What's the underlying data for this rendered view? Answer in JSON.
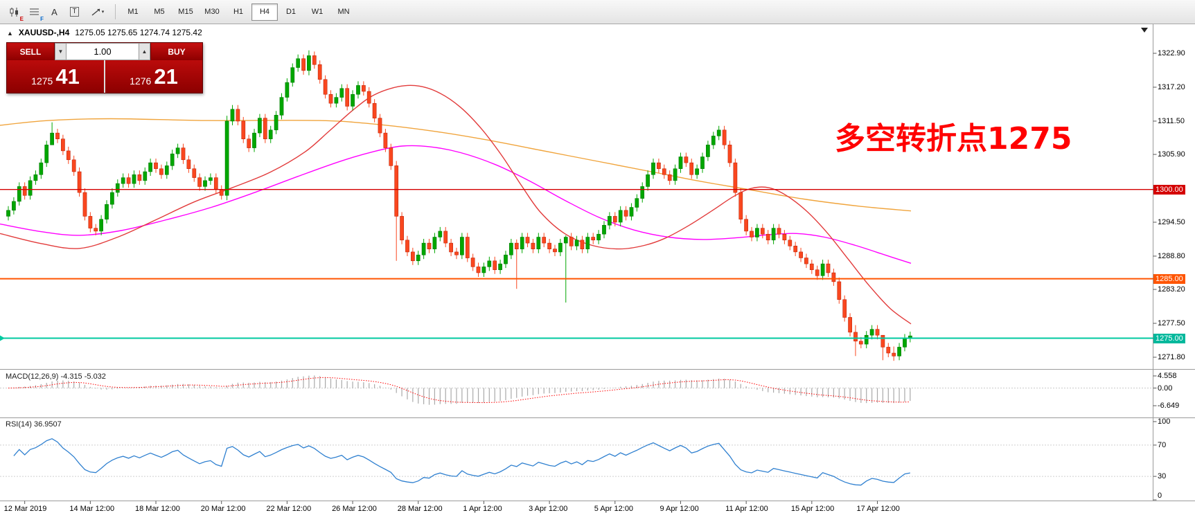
{
  "toolbar": {
    "icon_subs": [
      "E",
      "F"
    ],
    "text_tool": "A",
    "label_tool": "T",
    "caret": "▾",
    "timeframes": [
      "M1",
      "M5",
      "M15",
      "M30",
      "H1",
      "H4",
      "D1",
      "W1",
      "MN"
    ],
    "active_timeframe": "H4"
  },
  "chart_header": {
    "arrow": "▲",
    "symbol": "XAUUSD-,H4",
    "ohlc": "1275.05 1275.65 1274.74 1275.42"
  },
  "trade_panel": {
    "sell_label": "SELL",
    "buy_label": "BUY",
    "volume": "1.00",
    "spin_down": "▼",
    "spin_up": "▲",
    "sell_price": "1275",
    "sell_pips": "41",
    "buy_price": "1276",
    "buy_pips": "21"
  },
  "annotation": {
    "text": "多空转折点1275",
    "color": "#ff0000"
  },
  "price_axis": {
    "ticks": [
      "1322.90",
      "1317.20",
      "1311.50",
      "1305.90",
      "1294.50",
      "1288.80",
      "1283.20",
      "1277.50",
      "1271.80"
    ],
    "badges": [
      {
        "text": "1300.00",
        "price": 1300.0,
        "color": "#d40000"
      },
      {
        "text": "1285.00",
        "price": 1285.0,
        "color": "#ff5400"
      },
      {
        "text": "1275.00",
        "price": 1275.0,
        "color": "#00b89c"
      }
    ]
  },
  "indicators": {
    "macd": {
      "label": "MACD(12,26,9)",
      "values": "-4.315 -5.032",
      "axis": [
        "4.558",
        "0.00",
        "-6.649"
      ]
    },
    "rsi": {
      "label": "RSI(14)",
      "value": "36.9507",
      "axis": [
        "100",
        "70",
        "30",
        "0"
      ]
    }
  },
  "time_axis": {
    "labels": [
      "12 Mar 2019",
      "14 Mar 12:00",
      "18 Mar 12:00",
      "20 Mar 12:00",
      "22 Mar 12:00",
      "26 Mar 12:00",
      "28 Mar 12:00",
      "1 Apr 12:00",
      "3 Apr 12:00",
      "5 Apr 12:00",
      "9 Apr 12:00",
      "11 Apr 12:00",
      "15 Apr 12:00",
      "17 Apr 12:00"
    ]
  },
  "chart_data": {
    "type": "candlestick",
    "symbol": "XAUUSD",
    "timeframe": "H4",
    "title": "XAUUSD-,H4",
    "y_axis_range": [
      1270.0,
      1324.6
    ],
    "first_open": 1295.5,
    "default_wick": 0.7,
    "closes": [
      1296.5,
      1298.0,
      1300.5,
      1299.0,
      1301.5,
      1302.5,
      1304.5,
      1307.5,
      1309.5,
      1308.5,
      1306.5,
      1305.0,
      1303.0,
      1299.5,
      1295.5,
      1293.5,
      1293.0,
      1295.0,
      1297.5,
      1299.5,
      1301.0,
      1302.0,
      1301.0,
      1302.5,
      1301.5,
      1303.0,
      1304.5,
      1303.5,
      1302.5,
      1304.0,
      1306.0,
      1307.0,
      1305.0,
      1303.5,
      1302.0,
      1300.5,
      1301.5,
      1302.0,
      1300.0,
      1299.0,
      1311.5,
      1313.5,
      1311.5,
      1308.5,
      1307.0,
      1309.5,
      1312.0,
      1308.5,
      1310.0,
      1312.5,
      1315.5,
      1318.0,
      1320.5,
      1322.0,
      1320.0,
      1322.5,
      1321.0,
      1318.5,
      1316.0,
      1314.5,
      1315.5,
      1317.0,
      1314.0,
      1316.0,
      1317.5,
      1316.5,
      1314.5,
      1312.0,
      1309.5,
      1307.0,
      1304.0,
      1295.5,
      1291.5,
      1289.5,
      1288.0,
      1289.0,
      1291.0,
      1290.0,
      1292.0,
      1293.0,
      1291.0,
      1289.5,
      1289.0,
      1292.0,
      1288.5,
      1287.0,
      1286.0,
      1287.0,
      1288.0,
      1286.5,
      1287.5,
      1289.0,
      1291.0,
      1290.0,
      1292.0,
      1291.0,
      1290.0,
      1292.0,
      1291.0,
      1290.0,
      1289.5,
      1291.0,
      1292.0,
      1290.5,
      1291.5,
      1290.0,
      1292.0,
      1291.5,
      1292.5,
      1294.0,
      1295.5,
      1294.5,
      1296.5,
      1295.5,
      1297.0,
      1298.5,
      1300.5,
      1302.5,
      1304.5,
      1303.5,
      1302.5,
      1301.5,
      1303.5,
      1305.5,
      1304.5,
      1302.5,
      1303.5,
      1305.5,
      1307.5,
      1309.0,
      1310.0,
      1307.5,
      1304.5,
      1299.5,
      1295.0,
      1293.0,
      1292.0,
      1293.5,
      1292.5,
      1291.5,
      1293.5,
      1292.5,
      1291.5,
      1290.5,
      1289.5,
      1288.5,
      1287.5,
      1286.5,
      1285.5,
      1287.5,
      1286.0,
      1284.5,
      1281.5,
      1278.5,
      1276.0,
      1274.5,
      1274.0,
      1275.5,
      1276.5,
      1275.5,
      1273.5,
      1272.5,
      1272.0,
      1273.5,
      1275.0,
      1275.4
    ],
    "wick_overrides": {
      "8": [
        1311.3,
        1307.6
      ],
      "40": [
        1312.4,
        1298.2
      ],
      "55": [
        1323.4,
        1319.2
      ],
      "71": [
        1304.8,
        1288.0
      ],
      "93": [
        1291.6,
        1283.3
      ],
      "102": [
        1292.3,
        1281.0
      ],
      "155": [
        1277.2,
        1272.0
      ],
      "160": [
        1275.2,
        1271.3
      ],
      "162": [
        1273.6,
        1271.2
      ]
    },
    "up_color": "#00a600",
    "up_border": "#007300",
    "down_color": "#f9471f",
    "down_border": "#b81c00",
    "levels": [
      {
        "price": 1300.0,
        "color": "#d40000",
        "width": 1.4
      },
      {
        "price": 1285.0,
        "color": "#ff5400",
        "width": 2
      },
      {
        "price": 1275.0,
        "color": "#00c9a0",
        "width": 2,
        "marker": true
      }
    ],
    "moving_averages": [
      {
        "name": "ma-orange",
        "color": "#f0a43c",
        "points": [
          [
            0,
            1310.8
          ],
          [
            70,
            1311.6
          ],
          [
            160,
            1311.9
          ],
          [
            300,
            1311.6
          ],
          [
            460,
            1311.6
          ],
          [
            540,
            1311.0
          ],
          [
            620,
            1309.9
          ],
          [
            700,
            1308.4
          ],
          [
            780,
            1306.6
          ],
          [
            860,
            1304.8
          ],
          [
            940,
            1303.0
          ],
          [
            1010,
            1301.4
          ],
          [
            1080,
            1300.0
          ],
          [
            1160,
            1298.4
          ],
          [
            1240,
            1297.2
          ],
          [
            1315,
            1296.4
          ]
        ]
      },
      {
        "name": "ma-magenta",
        "color": "#ff00ff",
        "points": [
          [
            0,
            1294.2
          ],
          [
            60,
            1292.9
          ],
          [
            115,
            1292.3
          ],
          [
            175,
            1293.1
          ],
          [
            240,
            1294.9
          ],
          [
            305,
            1297.0
          ],
          [
            370,
            1299.6
          ],
          [
            430,
            1302.2
          ],
          [
            490,
            1304.7
          ],
          [
            540,
            1306.4
          ],
          [
            580,
            1307.3
          ],
          [
            620,
            1307.2
          ],
          [
            665,
            1306.2
          ],
          [
            715,
            1304.2
          ],
          [
            765,
            1301.4
          ],
          [
            815,
            1298.2
          ],
          [
            865,
            1295.3
          ],
          [
            915,
            1293.2
          ],
          [
            965,
            1292.0
          ],
          [
            1015,
            1291.6
          ],
          [
            1065,
            1291.9
          ],
          [
            1110,
            1292.4
          ],
          [
            1150,
            1292.6
          ],
          [
            1190,
            1292.0
          ],
          [
            1235,
            1290.6
          ],
          [
            1280,
            1288.9
          ],
          [
            1315,
            1287.6
          ]
        ]
      },
      {
        "name": "ma-red",
        "color": "#e23b3b",
        "points": [
          [
            0,
            1292.6
          ],
          [
            60,
            1290.9
          ],
          [
            115,
            1290.1
          ],
          [
            170,
            1292.0
          ],
          [
            225,
            1294.9
          ],
          [
            280,
            1297.9
          ],
          [
            335,
            1300.3
          ],
          [
            390,
            1302.9
          ],
          [
            440,
            1306.3
          ],
          [
            475,
            1309.8
          ],
          [
            510,
            1313.4
          ],
          [
            540,
            1315.9
          ],
          [
            575,
            1317.3
          ],
          [
            605,
            1317.4
          ],
          [
            635,
            1316.2
          ],
          [
            665,
            1313.8
          ],
          [
            695,
            1310.2
          ],
          [
            725,
            1305.6
          ],
          [
            752,
            1300.8
          ],
          [
            780,
            1296.2
          ],
          [
            815,
            1292.6
          ],
          [
            855,
            1290.6
          ],
          [
            895,
            1290.0
          ],
          [
            930,
            1290.6
          ],
          [
            960,
            1291.8
          ],
          [
            995,
            1294.0
          ],
          [
            1030,
            1296.6
          ],
          [
            1060,
            1298.9
          ],
          [
            1085,
            1300.2
          ],
          [
            1110,
            1300.3
          ],
          [
            1135,
            1299.0
          ],
          [
            1165,
            1296.3
          ],
          [
            1195,
            1292.6
          ],
          [
            1225,
            1288.2
          ],
          [
            1255,
            1283.8
          ],
          [
            1285,
            1280.0
          ],
          [
            1315,
            1277.4
          ]
        ]
      }
    ]
  }
}
